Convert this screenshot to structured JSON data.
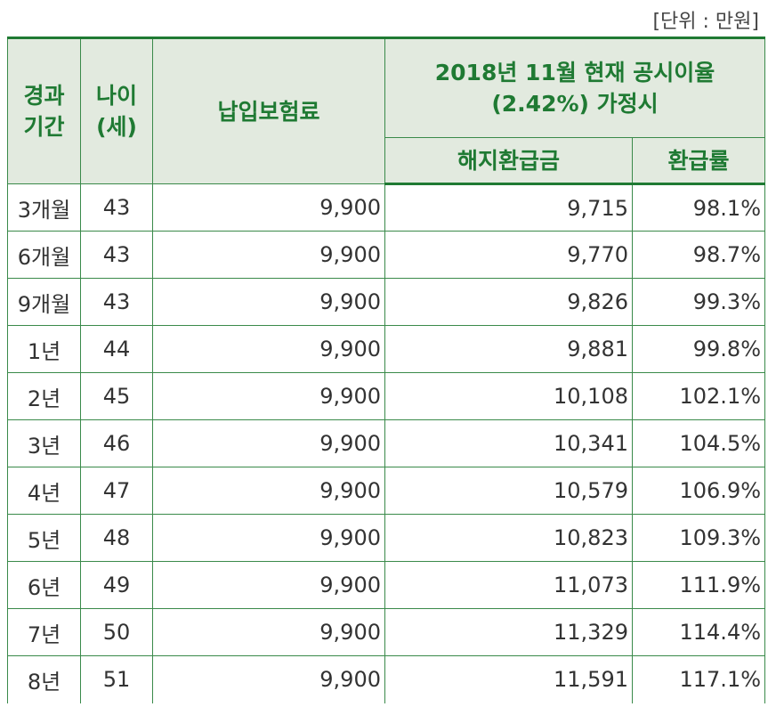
{
  "unit_label": "[단위 : 만원]",
  "headers": {
    "elapsed": "경과\n기간",
    "age": "나이\n(세)",
    "premium": "납입보험료",
    "group": "2018년 11월 현재 공시이율\n(2.42%) 가정시",
    "refund": "해지환급금",
    "rate": "환급률"
  },
  "rows": [
    {
      "period": "3개월",
      "age": "43",
      "premium": "9,900",
      "refund": "9,715",
      "rate": "98.1%"
    },
    {
      "period": "6개월",
      "age": "43",
      "premium": "9,900",
      "refund": "9,770",
      "rate": "98.7%"
    },
    {
      "period": "9개월",
      "age": "43",
      "premium": "9,900",
      "refund": "9,826",
      "rate": "99.3%"
    },
    {
      "period": "1년",
      "age": "44",
      "premium": "9,900",
      "refund": "9,881",
      "rate": "99.8%"
    },
    {
      "period": "2년",
      "age": "45",
      "premium": "9,900",
      "refund": "10,108",
      "rate": "102.1%"
    },
    {
      "period": "3년",
      "age": "46",
      "premium": "9,900",
      "refund": "10,341",
      "rate": "104.5%"
    },
    {
      "period": "4년",
      "age": "47",
      "premium": "9,900",
      "refund": "10,579",
      "rate": "106.9%"
    },
    {
      "period": "5년",
      "age": "48",
      "premium": "9,900",
      "refund": "10,823",
      "rate": "109.3%"
    },
    {
      "period": "6년",
      "age": "49",
      "premium": "9,900",
      "refund": "11,073",
      "rate": "111.9%"
    },
    {
      "period": "7년",
      "age": "50",
      "premium": "9,900",
      "refund": "11,329",
      "rate": "114.4%"
    },
    {
      "period": "8년",
      "age": "51",
      "premium": "9,900",
      "refund": "11,591",
      "rate": "117.1%"
    }
  ]
}
